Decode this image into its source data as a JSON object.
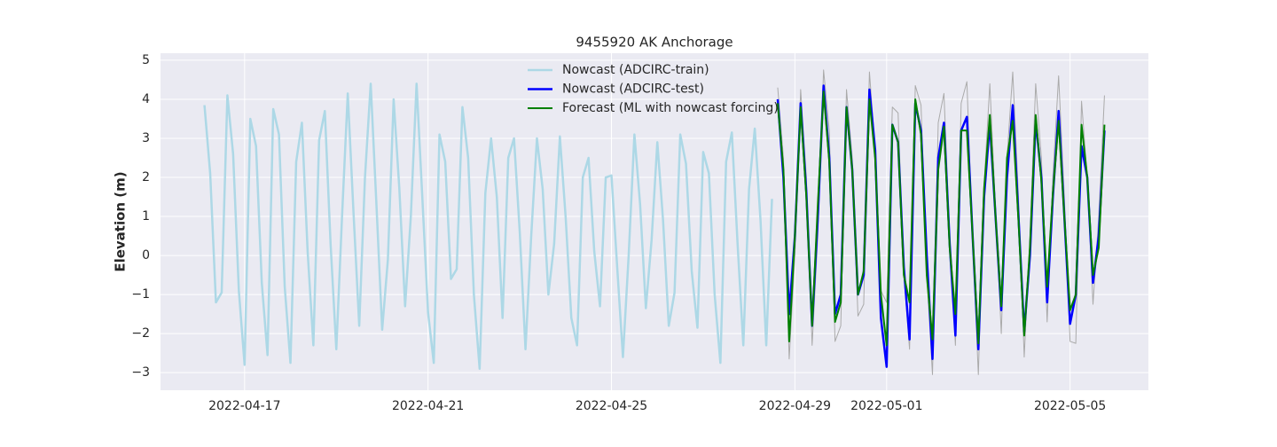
{
  "chart_data": {
    "type": "line",
    "title": "9455920 AK Anchorage",
    "ylabel": "Elevation (m)",
    "x": [
      "2022-04-16T03:00",
      "2022-04-16T06:00",
      "2022-04-16T09:00",
      "2022-04-16T12:00",
      "2022-04-16T15:00",
      "2022-04-16T18:00",
      "2022-04-16T21:00",
      "2022-04-17T00:00",
      "2022-04-17T03:00",
      "2022-04-17T06:00",
      "2022-04-17T09:00",
      "2022-04-17T12:00",
      "2022-04-17T15:00",
      "2022-04-17T18:00",
      "2022-04-17T21:00",
      "2022-04-18T00:00",
      "2022-04-18T03:00",
      "2022-04-18T06:00",
      "2022-04-18T09:00",
      "2022-04-18T12:00",
      "2022-04-18T15:00",
      "2022-04-18T18:00",
      "2022-04-18T21:00",
      "2022-04-19T00:00",
      "2022-04-19T03:00",
      "2022-04-19T06:00",
      "2022-04-19T09:00",
      "2022-04-19T12:00",
      "2022-04-19T15:00",
      "2022-04-19T18:00",
      "2022-04-19T21:00",
      "2022-04-20T00:00",
      "2022-04-20T03:00",
      "2022-04-20T06:00",
      "2022-04-20T09:00",
      "2022-04-20T12:00",
      "2022-04-20T15:00",
      "2022-04-20T18:00",
      "2022-04-20T21:00",
      "2022-04-21T00:00",
      "2022-04-21T03:00",
      "2022-04-21T06:00",
      "2022-04-21T09:00",
      "2022-04-21T12:00",
      "2022-04-21T15:00",
      "2022-04-21T18:00",
      "2022-04-21T21:00",
      "2022-04-22T00:00",
      "2022-04-22T03:00",
      "2022-04-22T06:00",
      "2022-04-22T09:00",
      "2022-04-22T12:00",
      "2022-04-22T15:00",
      "2022-04-22T18:00",
      "2022-04-22T21:00",
      "2022-04-23T00:00",
      "2022-04-23T03:00",
      "2022-04-23T06:00",
      "2022-04-23T09:00",
      "2022-04-23T12:00",
      "2022-04-23T15:00",
      "2022-04-23T18:00",
      "2022-04-23T21:00",
      "2022-04-24T00:00",
      "2022-04-24T03:00",
      "2022-04-24T06:00",
      "2022-04-24T09:00",
      "2022-04-24T12:00",
      "2022-04-24T15:00",
      "2022-04-24T18:00",
      "2022-04-24T21:00",
      "2022-04-25T00:00",
      "2022-04-25T03:00",
      "2022-04-25T06:00",
      "2022-04-25T09:00",
      "2022-04-25T12:00",
      "2022-04-25T15:00",
      "2022-04-25T18:00",
      "2022-04-25T21:00",
      "2022-04-26T00:00",
      "2022-04-26T03:00",
      "2022-04-26T06:00",
      "2022-04-26T09:00",
      "2022-04-26T12:00",
      "2022-04-26T15:00",
      "2022-04-26T18:00",
      "2022-04-26T21:00",
      "2022-04-27T00:00",
      "2022-04-27T03:00",
      "2022-04-27T06:00",
      "2022-04-27T09:00",
      "2022-04-27T12:00",
      "2022-04-27T15:00",
      "2022-04-27T18:00",
      "2022-04-27T21:00",
      "2022-04-28T00:00",
      "2022-04-28T03:00",
      "2022-04-28T06:00",
      "2022-04-28T09:00",
      "2022-04-28T12:00",
      "2022-04-28T15:00",
      "2022-04-28T18:00",
      "2022-04-28T21:00",
      "2022-04-29T00:00",
      "2022-04-29T03:00",
      "2022-04-29T06:00",
      "2022-04-29T09:00",
      "2022-04-29T12:00",
      "2022-04-29T15:00",
      "2022-04-29T18:00",
      "2022-04-29T21:00",
      "2022-04-30T00:00",
      "2022-04-30T03:00",
      "2022-04-30T06:00",
      "2022-04-30T09:00",
      "2022-04-30T12:00",
      "2022-04-30T15:00",
      "2022-04-30T18:00",
      "2022-04-30T21:00",
      "2022-05-01T00:00",
      "2022-05-01T03:00",
      "2022-05-01T06:00",
      "2022-05-01T09:00",
      "2022-05-01T12:00",
      "2022-05-01T15:00",
      "2022-05-01T18:00",
      "2022-05-01T21:00",
      "2022-05-02T00:00",
      "2022-05-02T03:00",
      "2022-05-02T06:00",
      "2022-05-02T09:00",
      "2022-05-02T12:00",
      "2022-05-02T15:00",
      "2022-05-02T18:00",
      "2022-05-02T21:00",
      "2022-05-03T00:00",
      "2022-05-03T03:00",
      "2022-05-03T06:00",
      "2022-05-03T09:00",
      "2022-05-03T12:00",
      "2022-05-03T15:00",
      "2022-05-03T18:00",
      "2022-05-03T21:00",
      "2022-05-04T00:00",
      "2022-05-04T03:00",
      "2022-05-04T06:00",
      "2022-05-04T09:00",
      "2022-05-04T12:00",
      "2022-05-04T15:00",
      "2022-05-04T18:00",
      "2022-05-04T21:00",
      "2022-05-05T00:00",
      "2022-05-05T03:00",
      "2022-05-05T06:00",
      "2022-05-05T09:00",
      "2022-05-05T12:00",
      "2022-05-05T15:00",
      "2022-05-05T18:00"
    ],
    "series": [
      {
        "color": "#aaaaaa",
        "values": [
          null,
          null,
          null,
          null,
          null,
          null,
          null,
          null,
          null,
          null,
          null,
          null,
          null,
          null,
          null,
          null,
          null,
          null,
          null,
          null,
          null,
          null,
          null,
          null,
          null,
          null,
          null,
          null,
          null,
          null,
          null,
          null,
          null,
          null,
          null,
          null,
          null,
          null,
          null,
          null,
          null,
          null,
          null,
          null,
          null,
          null,
          null,
          null,
          null,
          null,
          null,
          null,
          null,
          null,
          null,
          null,
          null,
          null,
          null,
          null,
          null,
          null,
          null,
          null,
          null,
          null,
          null,
          null,
          null,
          null,
          null,
          null,
          null,
          null,
          null,
          null,
          null,
          null,
          null,
          null,
          null,
          null,
          null,
          null,
          null,
          null,
          null,
          null,
          null,
          null,
          null,
          null,
          null,
          null,
          null,
          null,
          null,
          null,
          null,
          null,
          4.3,
          2.5,
          -2.65,
          0.0,
          4.25,
          2.0,
          -2.3,
          0.5,
          4.75,
          3.2,
          -2.2,
          -1.8,
          4.25,
          2.5,
          -1.55,
          -1.25,
          4.7,
          2.7,
          -0.9,
          -1.2,
          3.8,
          3.65,
          -0.5,
          -2.4,
          4.35,
          3.85,
          -0.5,
          -3.05,
          3.4,
          4.15,
          0.5,
          -2.3,
          3.9,
          4.45,
          0.4,
          -3.05,
          1.8,
          4.4,
          1.2,
          -2.0,
          2.5,
          4.7,
          1.5,
          -2.6,
          0.5,
          4.4,
          2.5,
          -1.7,
          2.0,
          4.6,
          1.5,
          -2.2,
          -2.25,
          3.95,
          2.0,
          -1.25,
          1.0,
          4.1
        ]
      },
      {
        "name": "Nowcast (ADCIRC-train)",
        "color": "#add8e6",
        "values": [
          3.85,
          2.1,
          -1.2,
          -0.95,
          4.1,
          2.6,
          -0.9,
          -2.8,
          3.5,
          2.8,
          -0.7,
          -2.55,
          3.75,
          3.1,
          -0.8,
          -2.75,
          2.4,
          3.4,
          0.1,
          -2.3,
          2.95,
          3.7,
          0.3,
          -2.4,
          1.0,
          4.15,
          1.1,
          -1.8,
          2.0,
          4.4,
          1.3,
          -1.9,
          -0.1,
          4.0,
          1.7,
          -1.3,
          1.0,
          4.4,
          1.5,
          -1.45,
          -2.75,
          3.1,
          2.4,
          -0.6,
          -0.35,
          3.8,
          2.5,
          -1.0,
          -2.9,
          1.6,
          3.0,
          1.5,
          -1.6,
          2.5,
          3.0,
          0.6,
          -2.4,
          0.5,
          3.0,
          1.7,
          -1.0,
          0.3,
          3.05,
          1.0,
          -1.6,
          -2.3,
          2.0,
          2.5,
          0.1,
          -1.3,
          2.0,
          2.05,
          -0.3,
          -2.6,
          0.0,
          3.1,
          1.3,
          -1.35,
          0.4,
          2.9,
          0.9,
          -1.8,
          -0.95,
          3.1,
          2.35,
          -0.4,
          -1.85,
          2.65,
          2.1,
          -1.0,
          -2.75,
          2.4,
          3.15,
          0.3,
          -2.3,
          1.7,
          3.25,
          0.9,
          -2.3,
          1.45,
          null,
          null,
          null,
          null,
          null,
          null,
          null,
          null,
          null,
          null,
          null,
          null,
          null,
          null,
          null,
          null,
          null,
          null,
          null,
          null,
          null,
          null,
          null,
          null,
          null,
          null,
          null,
          null,
          null,
          null,
          null,
          null,
          null,
          null,
          null,
          null,
          null,
          null,
          null,
          null,
          null,
          null,
          null,
          null,
          null,
          null,
          null,
          null,
          null,
          null,
          null,
          null,
          null,
          null,
          null,
          null,
          null,
          null
        ]
      },
      {
        "name": "Nowcast (ADCIRC-test)",
        "color": "#0000ff",
        "values": [
          null,
          null,
          null,
          null,
          null,
          null,
          null,
          null,
          null,
          null,
          null,
          null,
          null,
          null,
          null,
          null,
          null,
          null,
          null,
          null,
          null,
          null,
          null,
          null,
          null,
          null,
          null,
          null,
          null,
          null,
          null,
          null,
          null,
          null,
          null,
          null,
          null,
          null,
          null,
          null,
          null,
          null,
          null,
          null,
          null,
          null,
          null,
          null,
          null,
          null,
          null,
          null,
          null,
          null,
          null,
          null,
          null,
          null,
          null,
          null,
          null,
          null,
          null,
          null,
          null,
          null,
          null,
          null,
          null,
          null,
          null,
          null,
          null,
          null,
          null,
          null,
          null,
          null,
          null,
          null,
          null,
          null,
          null,
          null,
          null,
          null,
          null,
          null,
          null,
          null,
          null,
          null,
          null,
          null,
          null,
          null,
          null,
          null,
          null,
          null,
          4.0,
          2.0,
          -1.5,
          0.5,
          3.9,
          1.6,
          -1.8,
          1.0,
          4.35,
          2.5,
          -1.5,
          -1.0,
          3.8,
          2.2,
          -1.0,
          -0.5,
          4.25,
          2.7,
          -1.6,
          -2.85,
          3.35,
          2.9,
          -0.3,
          -2.15,
          3.9,
          3.2,
          0.0,
          -2.65,
          2.5,
          3.4,
          0.3,
          -2.05,
          3.2,
          3.55,
          0.5,
          -2.4,
          1.5,
          3.4,
          1.0,
          -1.4,
          2.0,
          3.85,
          1.0,
          -1.95,
          0.0,
          3.45,
          2.0,
          -1.2,
          1.5,
          3.7,
          1.0,
          -1.75,
          -1.0,
          2.8,
          2.0,
          -0.7,
          0.5,
          3.2
        ]
      },
      {
        "name": "Forecast (ML with nowcast forcing)",
        "color": "#008000",
        "values": [
          null,
          null,
          null,
          null,
          null,
          null,
          null,
          null,
          null,
          null,
          null,
          null,
          null,
          null,
          null,
          null,
          null,
          null,
          null,
          null,
          null,
          null,
          null,
          null,
          null,
          null,
          null,
          null,
          null,
          null,
          null,
          null,
          null,
          null,
          null,
          null,
          null,
          null,
          null,
          null,
          null,
          null,
          null,
          null,
          null,
          null,
          null,
          null,
          null,
          null,
          null,
          null,
          null,
          null,
          null,
          null,
          null,
          null,
          null,
          null,
          null,
          null,
          null,
          null,
          null,
          null,
          null,
          null,
          null,
          null,
          null,
          null,
          null,
          null,
          null,
          null,
          null,
          null,
          null,
          null,
          null,
          null,
          null,
          null,
          null,
          null,
          null,
          null,
          null,
          null,
          null,
          null,
          null,
          null,
          null,
          null,
          null,
          null,
          null,
          null,
          3.9,
          2.2,
          -2.2,
          0.5,
          3.8,
          1.5,
          -1.8,
          1.3,
          4.2,
          2.4,
          -1.7,
          -1.2,
          3.8,
          2.2,
          -1.0,
          -0.4,
          4.0,
          2.5,
          -1.0,
          -2.3,
          3.35,
          2.9,
          -0.5,
          -1.2,
          4.0,
          3.1,
          -0.5,
          -2.15,
          2.2,
          3.3,
          0.2,
          -1.5,
          3.2,
          3.2,
          0.5,
          -2.25,
          1.7,
          3.6,
          1.0,
          -1.3,
          2.5,
          3.45,
          0.9,
          -2.05,
          0.2,
          3.6,
          1.9,
          -0.8,
          1.6,
          3.45,
          1.0,
          -1.4,
          -1.0,
          3.35,
          2.0,
          -0.5,
          0.2,
          3.35
        ]
      }
    ],
    "xlim": [
      "2022-04-15T04:00",
      "2022-05-06T17:00"
    ],
    "xticks": [
      "2022-04-17",
      "2022-04-21",
      "2022-04-25",
      "2022-04-29",
      "2022-05-01",
      "2022-05-05"
    ],
    "ylim": [
      -3.45,
      5.18
    ],
    "yticks": [
      {
        "value": -3,
        "label": "−3"
      },
      {
        "value": -2,
        "label": "−2"
      },
      {
        "value": -1,
        "label": "−1"
      },
      0,
      1,
      2,
      3,
      4,
      5
    ],
    "grid": true,
    "legend": "upper center"
  }
}
